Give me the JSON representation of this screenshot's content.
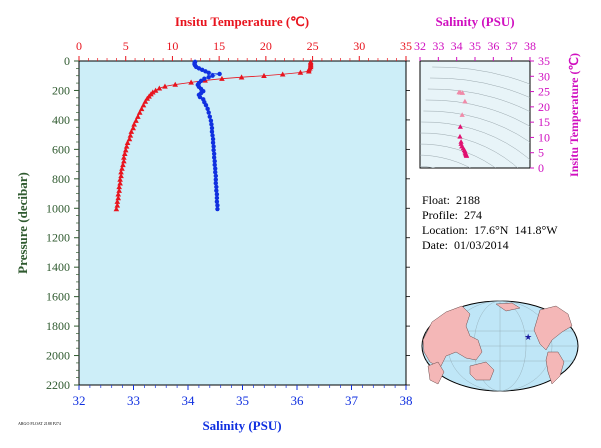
{
  "colors": {
    "temperature": "#e8141e",
    "salinity": "#1030e0",
    "pressure_axis": "#2f5a2f",
    "ts_axis": "#d010c0",
    "plot_bg": "#cdeef8",
    "ts_bg": "#e8f4f8"
  },
  "chart_data": [
    {
      "type": "line",
      "title": "",
      "xlabel_top": "Insitu Temperature (℃)",
      "xlabel_bottom": "Salinity (PSU)",
      "ylabel": "Pressure (decibar)",
      "temperature_ticks": [
        "0",
        "5",
        "10",
        "15",
        "20",
        "25",
        "30",
        "35"
      ],
      "salinity_ticks": [
        "32",
        "33",
        "34",
        "35",
        "36",
        "37",
        "38"
      ],
      "pressure_ticks": [
        "0",
        "200",
        "400",
        "600",
        "800",
        "1000",
        "1200",
        "1400",
        "1600",
        "1800",
        "2000",
        "2200"
      ],
      "temperature_range": [
        0,
        35
      ],
      "salinity_range": [
        32,
        38
      ],
      "pressure_range": [
        0,
        2200
      ],
      "y_inverted": true,
      "grid": false,
      "series": [
        {
          "key": "temperature",
          "marker": "triangle",
          "points": [
            [
              24.8,
              6
            ],
            [
              24.8,
              14
            ],
            [
              24.8,
              22
            ],
            [
              24.8,
              30
            ],
            [
              24.8,
              40
            ],
            [
              24.7,
              50
            ],
            [
              24.6,
              60
            ],
            [
              24.6,
              70
            ],
            [
              23.7,
              78
            ],
            [
              21.8,
              90
            ],
            [
              19.8,
              100
            ],
            [
              17.4,
              110
            ],
            [
              15.3,
              120
            ],
            [
              13.5,
              132
            ],
            [
              12.0,
              145
            ],
            [
              10.3,
              160
            ],
            [
              9.2,
              172
            ],
            [
              8.6,
              185
            ],
            [
              8.2,
              200
            ],
            [
              7.9,
              212
            ],
            [
              7.7,
              225
            ],
            [
              7.5,
              240
            ],
            [
              7.3,
              255
            ],
            [
              7.1,
              275
            ],
            [
              6.9,
              300
            ],
            [
              6.7,
              325
            ],
            [
              6.5,
              350
            ],
            [
              6.3,
              378
            ],
            [
              6.1,
              405
            ],
            [
              5.9,
              430
            ],
            [
              5.8,
              455
            ],
            [
              5.6,
              480
            ],
            [
              5.5,
              505
            ],
            [
              5.4,
              530
            ],
            [
              5.2,
              555
            ],
            [
              5.1,
              580
            ],
            [
              5.0,
              605
            ],
            [
              4.9,
              630
            ],
            [
              4.8,
              655
            ],
            [
              4.8,
              680
            ],
            [
              4.7,
              705
            ],
            [
              4.6,
              730
            ],
            [
              4.5,
              755
            ],
            [
              4.5,
              780
            ],
            [
              4.4,
              805
            ],
            [
              4.4,
              830
            ],
            [
              4.3,
              855
            ],
            [
              4.3,
              880
            ],
            [
              4.2,
              905
            ],
            [
              4.2,
              930
            ],
            [
              4.1,
              955
            ],
            [
              4.1,
              980
            ],
            [
              4.0,
              1005
            ]
          ]
        },
        {
          "key": "salinity",
          "marker": "circle",
          "points": [
            [
              34.13,
              6
            ],
            [
              34.12,
              14
            ],
            [
              34.12,
              22
            ],
            [
              34.13,
              30
            ],
            [
              34.15,
              40
            ],
            [
              34.2,
              50
            ],
            [
              34.26,
              60
            ],
            [
              34.32,
              70
            ],
            [
              34.38,
              80
            ],
            [
              34.58,
              88
            ],
            [
              34.45,
              100
            ],
            [
              34.38,
              110
            ],
            [
              34.3,
              120
            ],
            [
              34.24,
              135
            ],
            [
              34.2,
              150
            ],
            [
              34.18,
              162
            ],
            [
              34.2,
              175
            ],
            [
              34.24,
              190
            ],
            [
              34.28,
              205
            ],
            [
              34.24,
              218
            ],
            [
              34.2,
              230
            ],
            [
              34.22,
              245
            ],
            [
              34.28,
              260
            ],
            [
              34.3,
              280
            ],
            [
              34.33,
              300
            ],
            [
              34.36,
              325
            ],
            [
              34.38,
              350
            ],
            [
              34.4,
              378
            ],
            [
              34.42,
              405
            ],
            [
              34.43,
              430
            ],
            [
              34.44,
              455
            ],
            [
              34.44,
              480
            ],
            [
              34.45,
              505
            ],
            [
              34.46,
              530
            ],
            [
              34.46,
              555
            ],
            [
              34.47,
              580
            ],
            [
              34.47,
              605
            ],
            [
              34.48,
              630
            ],
            [
              34.48,
              655
            ],
            [
              34.49,
              680
            ],
            [
              34.49,
              705
            ],
            [
              34.5,
              730
            ],
            [
              34.5,
              755
            ],
            [
              34.51,
              780
            ],
            [
              34.51,
              805
            ],
            [
              34.51,
              830
            ],
            [
              34.52,
              855
            ],
            [
              34.52,
              880
            ],
            [
              34.53,
              905
            ],
            [
              34.53,
              930
            ],
            [
              34.53,
              955
            ],
            [
              34.54,
              980
            ],
            [
              34.54,
              1005
            ]
          ]
        }
      ]
    },
    {
      "type": "scatter",
      "title": "",
      "xlabel": "Salinity (PSU)",
      "ylabel": "Insitu Temperature (℃)",
      "x_ticks": [
        "32",
        "33",
        "34",
        "35",
        "36",
        "37",
        "38"
      ],
      "y_ticks": [
        "0",
        "5",
        "10",
        "15",
        "20",
        "25",
        "30",
        "35"
      ],
      "xlim": [
        32,
        38
      ],
      "ylim": [
        0,
        35
      ],
      "points": [
        [
          34.13,
          24.8
        ],
        [
          34.2,
          24.7
        ],
        [
          34.32,
          24.6
        ],
        [
          34.45,
          21.8
        ],
        [
          34.3,
          17.4
        ],
        [
          34.2,
          13.5
        ],
        [
          34.18,
          10.3
        ],
        [
          34.24,
          8.6
        ],
        [
          34.24,
          7.9
        ],
        [
          34.28,
          7.1
        ],
        [
          34.36,
          6.5
        ],
        [
          34.42,
          5.9
        ],
        [
          34.45,
          5.5
        ],
        [
          34.47,
          5.0
        ],
        [
          34.49,
          4.7
        ],
        [
          34.51,
          4.4
        ],
        [
          34.53,
          4.2
        ],
        [
          34.54,
          4.0
        ]
      ]
    }
  ],
  "info": {
    "float": "Float:  2188",
    "profile": "Profile:  274",
    "location": "Location:  17.6°N  141.8°W",
    "date": "Date:  01/03/2014"
  },
  "map": {
    "marker_lon": -141.8,
    "marker_lat": 17.6
  },
  "footer_note": "ARGO FLOAT 2188 P274"
}
